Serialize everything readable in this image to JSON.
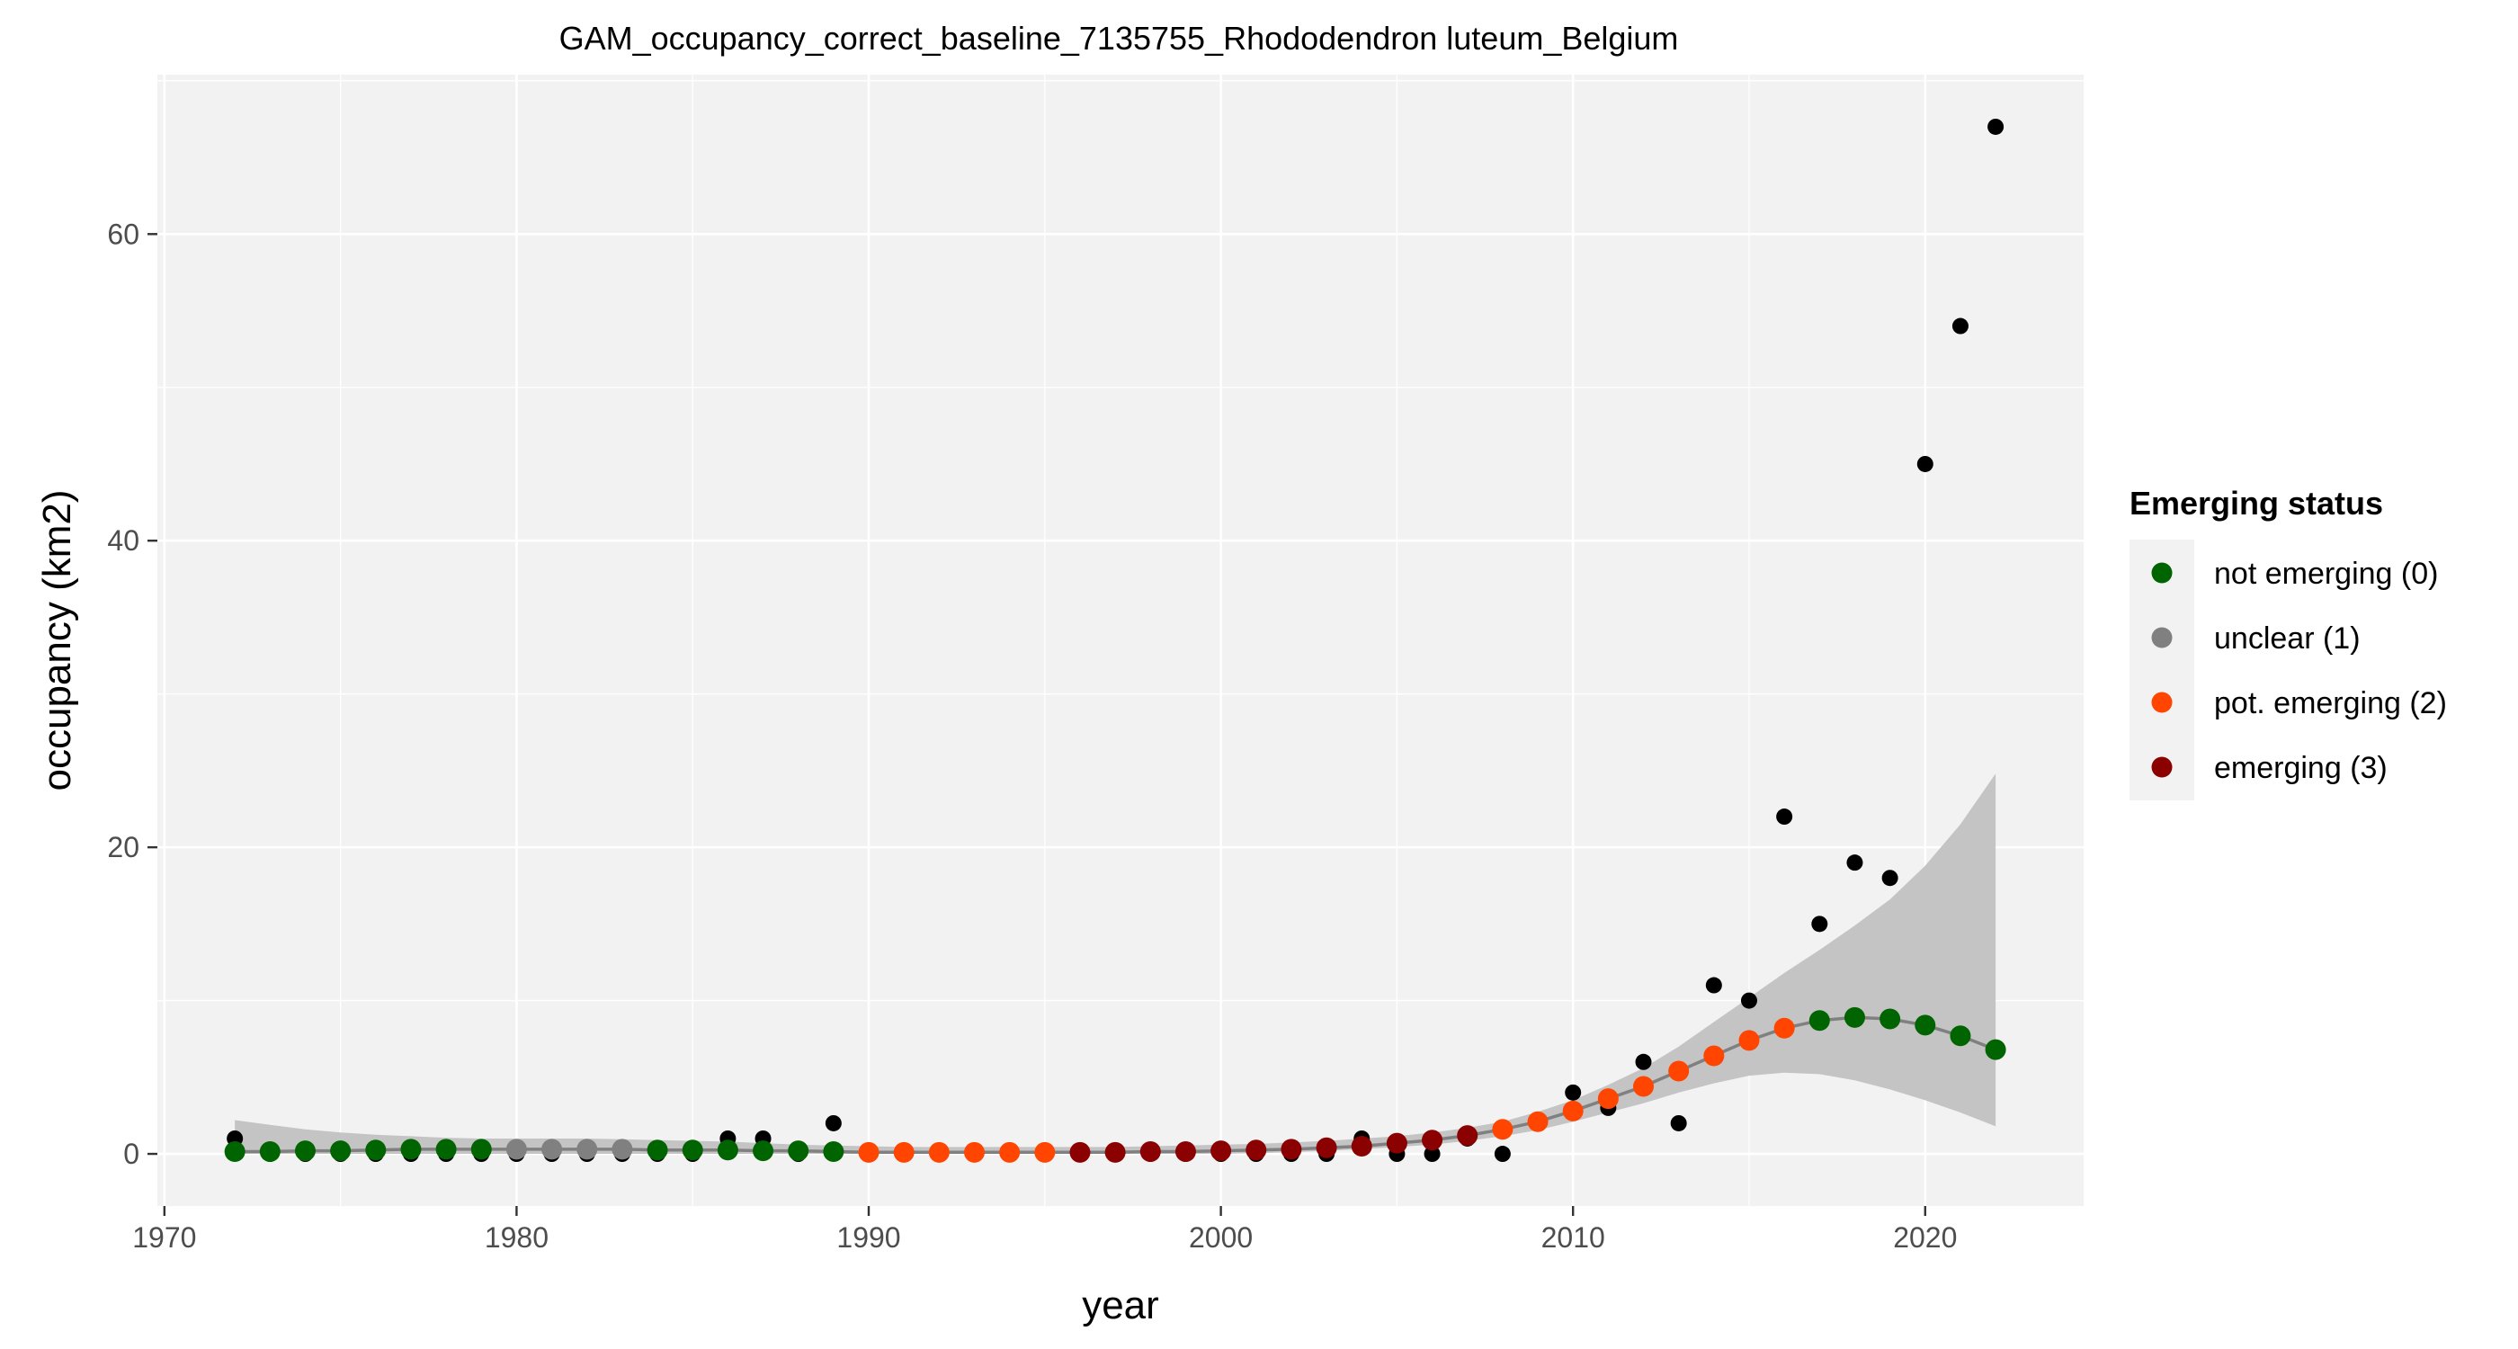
{
  "chart_data": {
    "type": "scatter",
    "title": "GAM_occupancy_correct_baseline_7135755_Rhododendron luteum_Belgium",
    "xlabel": "year",
    "ylabel": "occupancy (km2)",
    "xlim": [
      1969.8,
      2024.5
    ],
    "ylim": [
      -3.4,
      70.4
    ],
    "x_ticks": [
      1970,
      1980,
      1990,
      2000,
      2010,
      2020
    ],
    "y_ticks": [
      0,
      20,
      40,
      60
    ],
    "grid": true,
    "legend": {
      "title": "Emerging status",
      "position": "right",
      "entries": [
        {
          "label": "not emerging (0)",
          "color": "#006400"
        },
        {
          "label": "unclear (1)",
          "color": "#808080"
        },
        {
          "label": "pot. emerging (2)",
          "color": "#ff4500"
        },
        {
          "label": "emerging (3)",
          "color": "#8b0000"
        }
      ]
    },
    "observed": {
      "color": "#000000",
      "x": [
        1972,
        1973,
        1974,
        1975,
        1976,
        1977,
        1978,
        1979,
        1980,
        1981,
        1982,
        1983,
        1984,
        1985,
        1986,
        1987,
        1988,
        1989,
        1990,
        1991,
        1992,
        1993,
        1994,
        1995,
        1996,
        1997,
        1998,
        1999,
        2000,
        2001,
        2002,
        2003,
        2004,
        2005,
        2006,
        2007,
        2008,
        2009,
        2010,
        2011,
        2012,
        2013,
        2014,
        2015,
        2016,
        2017,
        2018,
        2019,
        2020,
        2021,
        2022
      ],
      "y": [
        1,
        0,
        0,
        0,
        0,
        0,
        0,
        0,
        0,
        0,
        0,
        0,
        0,
        0,
        1,
        1,
        0,
        2,
        0,
        0,
        0,
        0,
        0,
        0,
        0,
        0,
        0,
        0,
        0,
        0,
        0,
        0,
        1,
        0,
        0,
        1,
        0,
        2,
        4,
        3,
        6,
        2,
        11,
        10,
        22,
        15,
        19,
        18,
        45,
        54,
        67
      ]
    },
    "fit": {
      "color": "#808080",
      "band_color": "#c4c4c4",
      "x": [
        1972,
        1973,
        1974,
        1975,
        1976,
        1977,
        1978,
        1979,
        1980,
        1981,
        1982,
        1983,
        1984,
        1985,
        1986,
        1987,
        1988,
        1989,
        1990,
        1991,
        1992,
        1993,
        1994,
        1995,
        1996,
        1997,
        1998,
        1999,
        2000,
        2001,
        2002,
        2003,
        2004,
        2005,
        2006,
        2007,
        2008,
        2009,
        2010,
        2011,
        2012,
        2013,
        2014,
        2015,
        2016,
        2017,
        2018,
        2019,
        2020,
        2021,
        2022
      ],
      "y": [
        0.15,
        0.15,
        0.2,
        0.2,
        0.25,
        0.3,
        0.3,
        0.3,
        0.3,
        0.3,
        0.3,
        0.3,
        0.25,
        0.25,
        0.25,
        0.2,
        0.2,
        0.15,
        0.1,
        0.1,
        0.1,
        0.1,
        0.1,
        0.1,
        0.1,
        0.1,
        0.15,
        0.15,
        0.2,
        0.25,
        0.3,
        0.4,
        0.5,
        0.7,
        0.9,
        1.2,
        1.6,
        2.1,
        2.8,
        3.6,
        4.4,
        5.4,
        6.4,
        7.4,
        8.2,
        8.7,
        8.9,
        8.8,
        8.4,
        7.7,
        6.8
      ],
      "lower": [
        0.0,
        0.0,
        0.0,
        0.0,
        0.0,
        0.0,
        0.0,
        0.0,
        0.0,
        0.0,
        0.0,
        0.0,
        0.0,
        0.0,
        0.0,
        0.0,
        0.0,
        0.0,
        0.0,
        0.0,
        0.0,
        0.0,
        0.0,
        0.0,
        0.0,
        0.0,
        0.0,
        0.0,
        0.0,
        0.05,
        0.1,
        0.2,
        0.3,
        0.45,
        0.6,
        0.85,
        1.15,
        1.55,
        2.1,
        2.7,
        3.3,
        4.0,
        4.6,
        5.1,
        5.3,
        5.2,
        4.8,
        4.2,
        3.5,
        2.7,
        1.8
      ],
      "upper": [
        2.2,
        1.9,
        1.6,
        1.4,
        1.25,
        1.15,
        1.05,
        1.0,
        1.0,
        1.0,
        1.0,
        0.95,
        0.9,
        0.85,
        0.8,
        0.7,
        0.6,
        0.55,
        0.5,
        0.45,
        0.45,
        0.45,
        0.45,
        0.45,
        0.45,
        0.45,
        0.5,
        0.55,
        0.6,
        0.65,
        0.75,
        0.85,
        1.0,
        1.15,
        1.4,
        1.7,
        2.1,
        2.75,
        3.5,
        4.5,
        5.6,
        7.0,
        8.6,
        10.2,
        11.8,
        13.3,
        14.9,
        16.6,
        18.8,
        21.5,
        24.8
      ],
      "status": [
        0,
        0,
        0,
        0,
        0,
        0,
        0,
        0,
        1,
        1,
        1,
        1,
        0,
        0,
        0,
        0,
        0,
        0,
        2,
        2,
        2,
        2,
        2,
        2,
        3,
        3,
        3,
        3,
        3,
        3,
        3,
        3,
        3,
        3,
        3,
        3,
        2,
        2,
        2,
        2,
        2,
        2,
        2,
        2,
        2,
        0,
        0,
        0,
        0,
        0,
        0
      ]
    }
  }
}
